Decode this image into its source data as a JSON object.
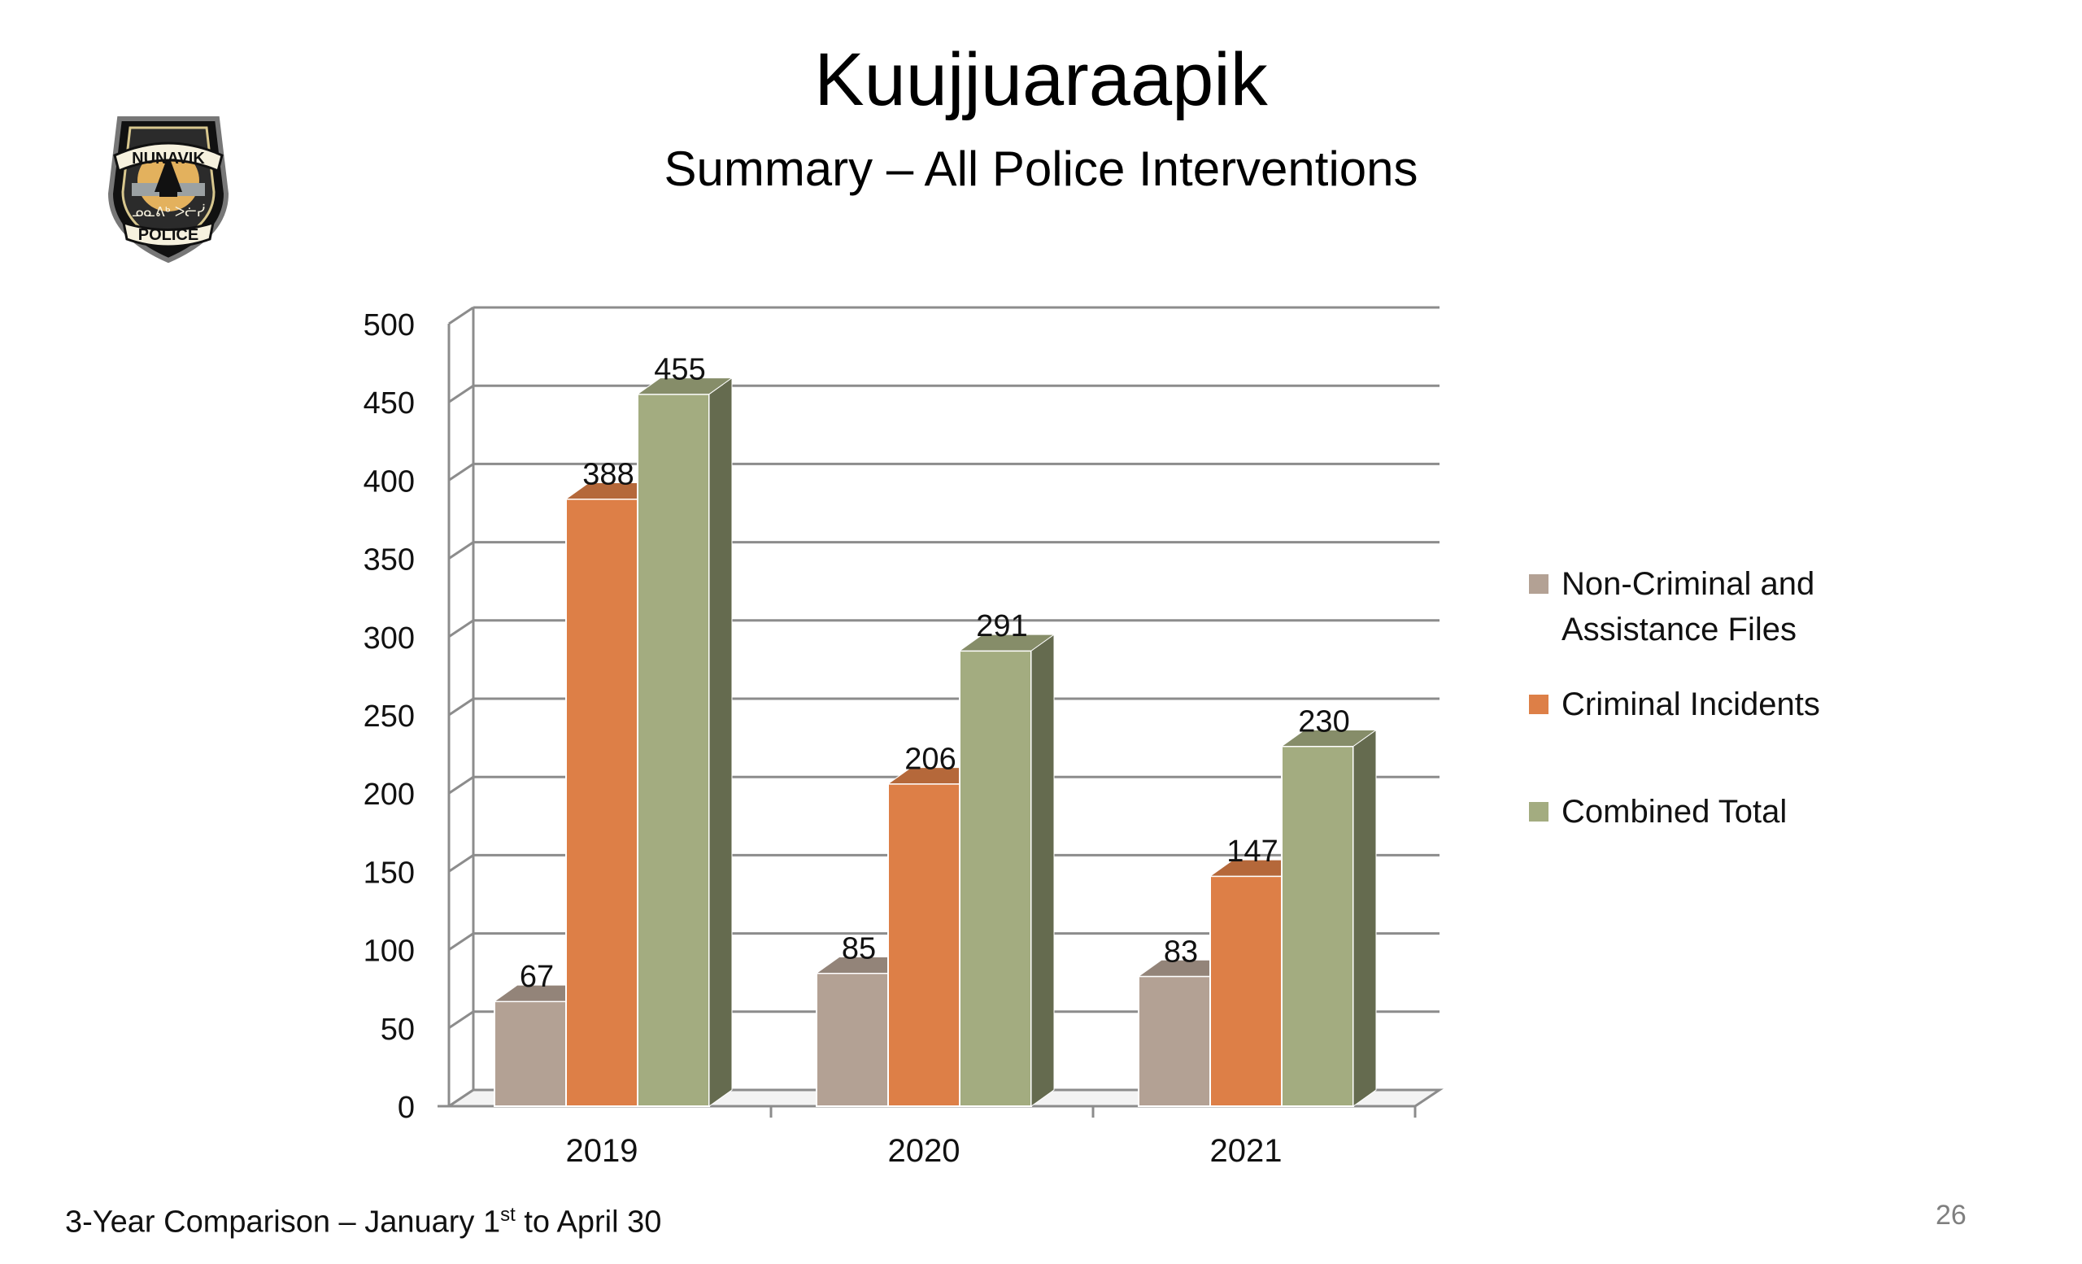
{
  "slide": {
    "title": "Kuujjuaraapik",
    "subtitle": "Summary – All Police Interventions",
    "footer_prefix": "3-Year Comparison – January 1",
    "footer_sup": "st",
    "footer_suffix": " to April 30",
    "page_number": "26"
  },
  "logo": {
    "top_text": "NUNAVIK",
    "bottom_text": "POLICE",
    "middle_text": "ᓄᓇᕕᒃ ᐳᓖᓰ"
  },
  "chart_data": {
    "type": "bar",
    "title": "",
    "categories": [
      "2019",
      "2020",
      "2021"
    ],
    "series": [
      {
        "name": "Non-Criminal and Assistance Files",
        "values": [
          67,
          85,
          83
        ],
        "color": "#b3a194"
      },
      {
        "name": "Criminal Incidents",
        "values": [
          388,
          206,
          147
        ],
        "color": "#dd7f47"
      },
      {
        "name": "Combined Total",
        "values": [
          455,
          291,
          230
        ],
        "color": "#a3ac80"
      }
    ],
    "ylim": [
      0,
      500
    ],
    "yticks": [
      0,
      50,
      100,
      150,
      200,
      250,
      300,
      350,
      400,
      450,
      500
    ],
    "xlabel": "",
    "ylabel": "",
    "grid": true,
    "style": "3d-clustered-column",
    "legend_position": "right"
  },
  "legend": {
    "items": [
      {
        "label_line1": "Non-Criminal and",
        "label_line2": "Assistance Files",
        "color": "#b3a194"
      },
      {
        "label_line1": "Criminal Incidents",
        "label_line2": "",
        "color": "#dd7f47"
      },
      {
        "label_line1": "Combined Total",
        "label_line2": "",
        "color": "#a3ac80"
      }
    ]
  }
}
